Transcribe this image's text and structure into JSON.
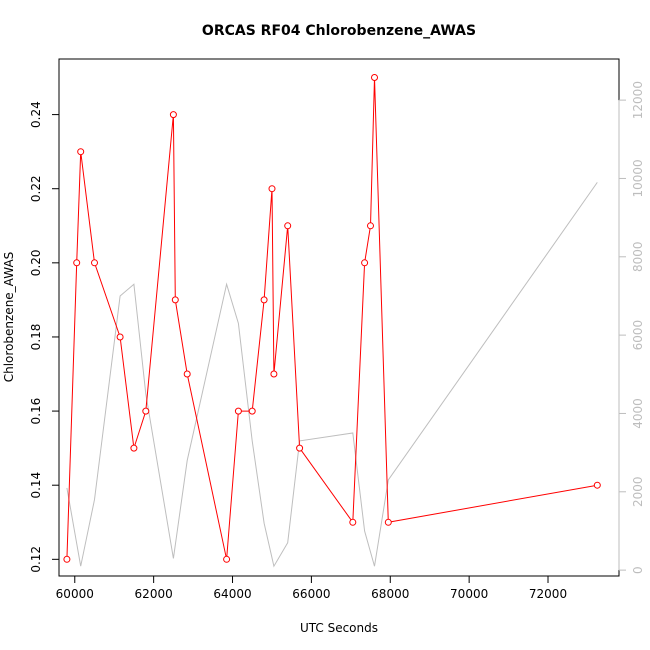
{
  "chart_data": {
    "type": "line",
    "title": "ORCAS RF04 Chlorobenzene_AWAS",
    "xlabel": "UTC Seconds",
    "ylabel": "Chlorobenzene_AWAS",
    "xlim": [
      59600,
      73800
    ],
    "ylim": [
      0.1155,
      0.255
    ],
    "y2lim": [
      -150,
      13050
    ],
    "xticks": [
      60000,
      62000,
      64000,
      66000,
      68000,
      70000,
      72000
    ],
    "yticks": [
      0.12,
      0.14,
      0.16,
      0.18,
      0.2,
      0.22,
      0.24
    ],
    "y2ticks": [
      0,
      2000,
      4000,
      6000,
      8000,
      10000,
      12000
    ],
    "xtick_labels": [
      "60000",
      "62000",
      "64000",
      "66000",
      "68000",
      "70000",
      "72000"
    ],
    "ytick_labels": [
      "0.12",
      "0.14",
      "0.16",
      "0.18",
      "0.20",
      "0.22",
      "0.24"
    ],
    "y2tick_labels": [
      "0",
      "2000",
      "4000",
      "6000",
      "8000",
      "10000",
      "12000"
    ],
    "series": [
      {
        "axis": "left",
        "color": "#ff0000",
        "marker": "open-circle",
        "x": [
          59800,
          60050,
          60150,
          60500,
          61150,
          61500,
          61800,
          62500,
          62550,
          62850,
          63850,
          64150,
          64500,
          64800,
          65000,
          65050,
          65400,
          65700,
          67050,
          67350,
          67500,
          67600,
          67950,
          73250
        ],
        "y": [
          0.12,
          0.2,
          0.23,
          0.2,
          0.18,
          0.15,
          0.16,
          0.24,
          0.19,
          0.17,
          0.12,
          0.16,
          0.16,
          0.19,
          0.22,
          0.17,
          0.21,
          0.15,
          0.13,
          0.2,
          0.21,
          0.25,
          0.13,
          0.14
        ]
      },
      {
        "axis": "right",
        "color": "#bebebe",
        "marker": "none",
        "x": [
          59800,
          60150,
          60500,
          61150,
          61500,
          61800,
          62500,
          62850,
          63850,
          64150,
          64500,
          64800,
          65050,
          65400,
          65700,
          67050,
          67350,
          67600,
          67950,
          73250
        ],
        "y": [
          2100,
          100,
          1800,
          7000,
          7300,
          4500,
          300,
          2800,
          7300,
          6300,
          3300,
          1200,
          100,
          700,
          3300,
          3500,
          1000,
          100,
          2300,
          9900
        ]
      }
    ]
  }
}
